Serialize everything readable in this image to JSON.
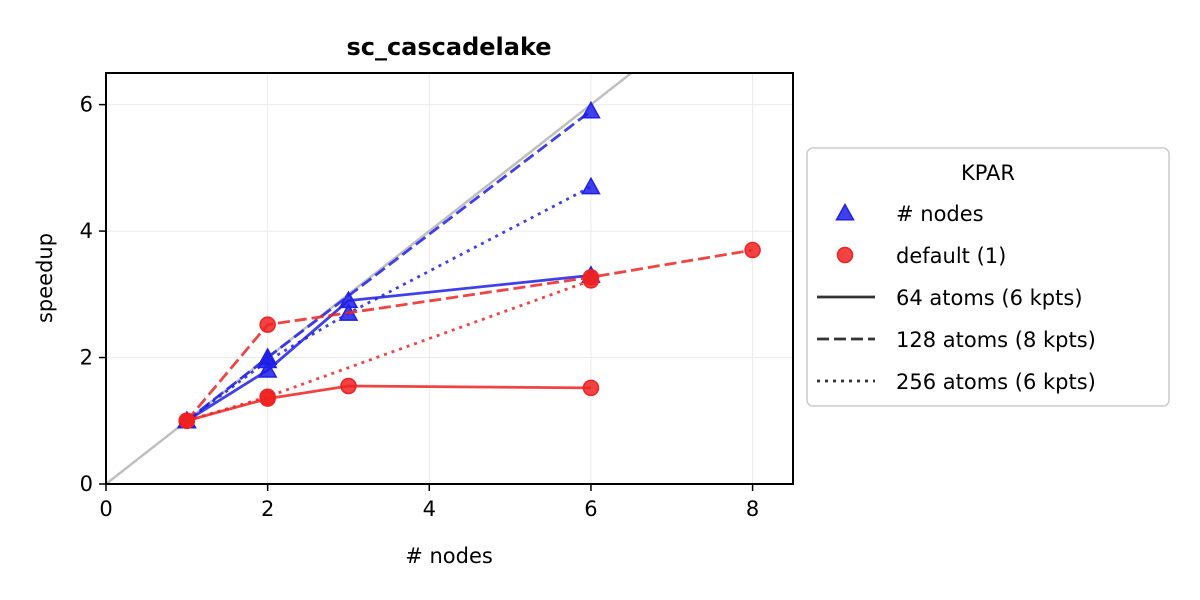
{
  "chart_data": {
    "type": "line",
    "title": "sc_cascadelake",
    "xlabel": "# nodes",
    "ylabel": "speedup",
    "xlim": [
      0,
      8.5
    ],
    "ylim": [
      0,
      6.5
    ],
    "xticks": [
      0,
      2,
      4,
      6,
      8
    ],
    "yticks": [
      0,
      2,
      4,
      6
    ],
    "grid": true,
    "ideal_line": {
      "slope": 1,
      "color": "#bfbfbf"
    },
    "legend": {
      "title": "KPAR",
      "placement": "outside-right",
      "entries": [
        {
          "label": "# nodes",
          "kind": "marker",
          "marker": "triangle",
          "color": "#1f1fe6"
        },
        {
          "label": "default (1)",
          "kind": "marker",
          "marker": "circle",
          "color": "#ee2222"
        },
        {
          "label": "64 atoms (6 kpts)",
          "kind": "line",
          "dash": "solid",
          "color": "#333333"
        },
        {
          "label": "128 atoms (8 kpts)",
          "kind": "line",
          "dash": "dashed",
          "color": "#333333"
        },
        {
          "label": "256 atoms (6 kpts)",
          "kind": "line",
          "dash": "dotted",
          "color": "#333333"
        }
      ]
    },
    "series": [
      {
        "kpar": "# nodes",
        "atoms": "64 atoms (6 kpts)",
        "dash": "solid",
        "marker": "triangle",
        "color": "#1f1fe6",
        "x": [
          1,
          2,
          3,
          6
        ],
        "y": [
          1.0,
          1.8,
          2.9,
          3.3
        ]
      },
      {
        "kpar": "# nodes",
        "atoms": "128 atoms (8 kpts)",
        "dash": "dashed",
        "marker": "triangle",
        "color": "#1f1fe6",
        "x": [
          1,
          2,
          6
        ],
        "y": [
          1.0,
          2.0,
          5.9
        ]
      },
      {
        "kpar": "# nodes",
        "atoms": "256 atoms (6 kpts)",
        "dash": "dotted",
        "marker": "triangle",
        "color": "#1f1fe6",
        "x": [
          1,
          2,
          3,
          6
        ],
        "y": [
          1.0,
          1.95,
          2.7,
          4.7
        ]
      },
      {
        "kpar": "default (1)",
        "atoms": "64 atoms (6 kpts)",
        "dash": "solid",
        "marker": "circle",
        "color": "#ee2222",
        "x": [
          1,
          2,
          3,
          6
        ],
        "y": [
          1.0,
          1.35,
          1.55,
          1.52
        ]
      },
      {
        "kpar": "default (1)",
        "atoms": "128 atoms (8 kpts)",
        "dash": "dashed",
        "marker": "circle",
        "color": "#ee2222",
        "x": [
          1,
          2,
          6,
          8
        ],
        "y": [
          1.0,
          2.52,
          3.27,
          3.7
        ]
      },
      {
        "kpar": "default (1)",
        "atoms": "256 atoms (6 kpts)",
        "dash": "dotted",
        "marker": "circle",
        "color": "#ee2222",
        "x": [
          1,
          2,
          6
        ],
        "y": [
          1.0,
          1.38,
          3.22
        ]
      }
    ]
  }
}
